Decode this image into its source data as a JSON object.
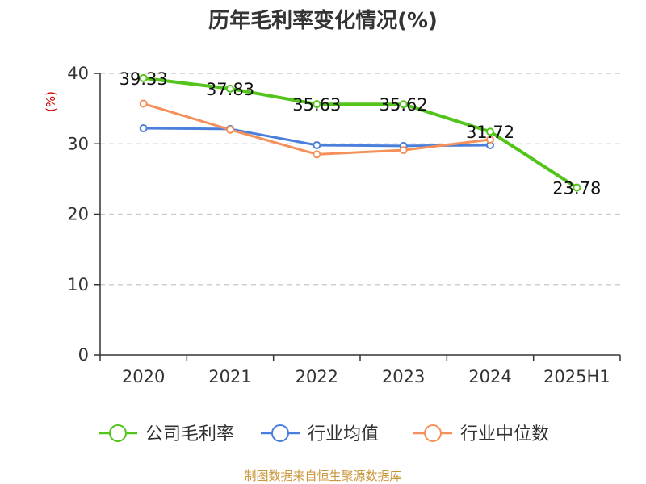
{
  "chart_data": {
    "type": "line",
    "title": "历年毛利率变化情况(%)",
    "ylabel": "(%)",
    "xlabel": "",
    "categories": [
      "2020",
      "2021",
      "2022",
      "2023",
      "2024",
      "2025H1"
    ],
    "y_ticks": [
      "0",
      "10",
      "20",
      "30",
      "40"
    ],
    "ylim": [
      0,
      40
    ],
    "grid": true,
    "legend_position": "bottom",
    "series": [
      {
        "name": "公司毛利率",
        "color": "#52c41a",
        "values": [
          39.33,
          37.83,
          35.63,
          35.62,
          31.72,
          23.78
        ],
        "labels": [
          "39.33",
          "37.83",
          "35.63",
          "35.62",
          "31.72",
          "23.78"
        ]
      },
      {
        "name": "行业均值",
        "color": "#4a7fdc",
        "values": [
          32.2,
          32.1,
          29.8,
          29.7,
          29.8,
          null
        ]
      },
      {
        "name": "行业中位数",
        "color": "#f5905a",
        "values": [
          35.7,
          32.0,
          28.5,
          29.1,
          30.6,
          null
        ]
      }
    ],
    "unit_color": "#cc0000"
  },
  "source": {
    "text": "制图数据来自恒生聚源数据库",
    "color": "#c9963a"
  }
}
